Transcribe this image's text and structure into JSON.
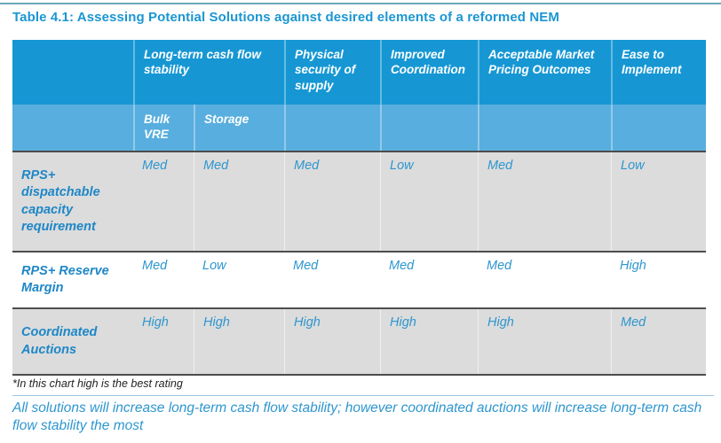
{
  "title": "Table 4.1: Assessing Potential Solutions against desired elements of a reformed NEM",
  "table": {
    "header_groups": {
      "cashflow": "Long-term cash flow stability",
      "physical": "Physical security of supply",
      "coordination": "Improved Coordination",
      "pricing": "Acceptable Market Pricing Outcomes",
      "ease": "Ease to Implement"
    },
    "subheaders": {
      "bulk_vre": "Bulk VRE",
      "storage": "Storage"
    },
    "rows": [
      {
        "label": "RPS+ dispatchable capacity requirement",
        "values": [
          "Med",
          "Med",
          "Med",
          "Low",
          "Med",
          "Low"
        ]
      },
      {
        "label": "RPS+ Reserve Margin",
        "values": [
          "Med",
          "Low",
          "Med",
          "Med",
          "Med",
          "High"
        ]
      },
      {
        "label": "Coordinated Auctions",
        "values": [
          "High",
          "High",
          "High",
          "High",
          "High",
          "Med"
        ]
      }
    ]
  },
  "footnote": "*In this chart high is the best rating",
  "summary": "All solutions will increase long-term cash flow stability; however coordinated auctions will increase long-term cash flow stability the most",
  "colors": {
    "header_blue": "#1697d4",
    "subheader_blue": "#58aede",
    "row_gray": "#dcdcdc",
    "title_blue": "#1b96d2",
    "label_blue": "#1e87c7",
    "value_blue": "#2e96ce",
    "border_dark": "#4d4d4d",
    "top_rule": "#68a9b6",
    "foot_divider": "#9fc6e3"
  },
  "chart_data": {
    "type": "table",
    "title": "Table 4.1: Assessing Potential Solutions against desired elements of a reformed NEM",
    "columns": [
      "Long-term cash flow stability — Bulk VRE",
      "Long-term cash flow stability — Storage",
      "Physical security of supply",
      "Improved Coordination",
      "Acceptable Market Pricing Outcomes",
      "Ease to Implement"
    ],
    "rows": [
      {
        "solution": "RPS+ dispatchable capacity requirement",
        "ratings": [
          "Med",
          "Med",
          "Med",
          "Low",
          "Med",
          "Low"
        ]
      },
      {
        "solution": "RPS+ Reserve Margin",
        "ratings": [
          "Med",
          "Low",
          "Med",
          "Med",
          "Med",
          "High"
        ]
      },
      {
        "solution": "Coordinated Auctions",
        "ratings": [
          "High",
          "High",
          "High",
          "High",
          "High",
          "Med"
        ]
      }
    ],
    "notes": [
      "*In this chart high is the best rating",
      "All solutions will increase long-term cash flow stability; however coordinated auctions will increase long-term cash flow stability the most"
    ]
  }
}
